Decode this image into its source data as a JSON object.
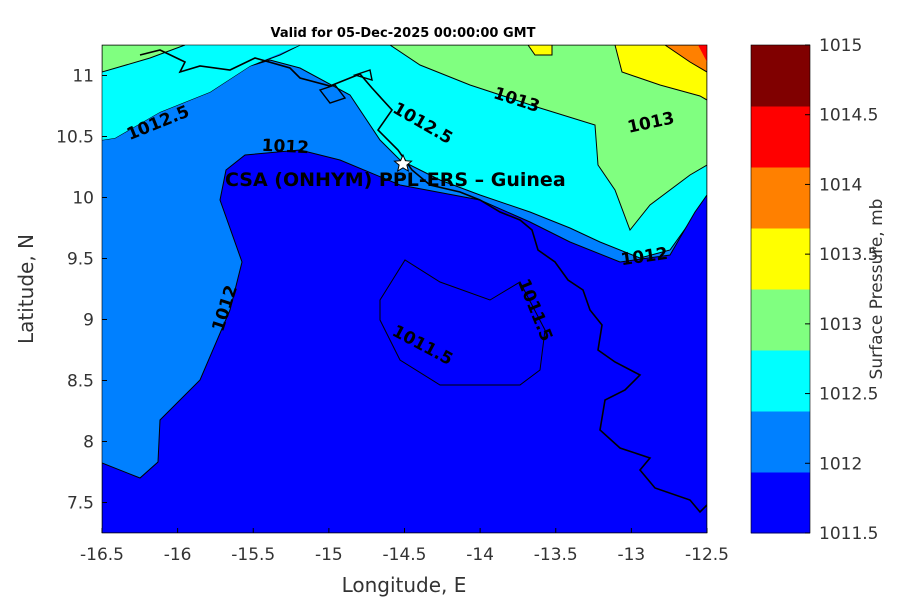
{
  "chart_data": {
    "type": "contour",
    "title": "Valid for 05-Dec-2025 00:00:00 GMT",
    "xlabel": "Longitude, E",
    "ylabel": "Latitude, N",
    "xlim": [
      -16.5,
      -12.5
    ],
    "ylim": [
      7.25,
      11.25
    ],
    "xticks": [
      "-16.5",
      "-16",
      "-15.5",
      "-15",
      "-14.5",
      "-14",
      "-13.5",
      "-13",
      "-12.5"
    ],
    "yticks": [
      "7.5",
      "8",
      "8.5",
      "9",
      "9.5",
      "10",
      "10.5",
      "11"
    ],
    "colorbar": {
      "label": "Surface Pressure, mb",
      "ticks": [
        "1011.5",
        "1012",
        "1012.5",
        "1013",
        "1013.5",
        "1014",
        "1014.5",
        "1015"
      ],
      "colors": [
        "#0000ff",
        "#0080ff",
        "#00ffff",
        "#80ff80",
        "#ffff00",
        "#ff8000",
        "#ff0000",
        "#800000"
      ]
    },
    "contour_labels": [
      "1012.5",
      "1012.5",
      "1013",
      "1013",
      "1012",
      "1012",
      "1012",
      "1011.5",
      "1011.5"
    ],
    "annotation": {
      "text": "CSA (ONHYM) PPL-ERS  – Guinea",
      "lon": -14.5,
      "lat": 10.28,
      "marker": "star"
    }
  }
}
